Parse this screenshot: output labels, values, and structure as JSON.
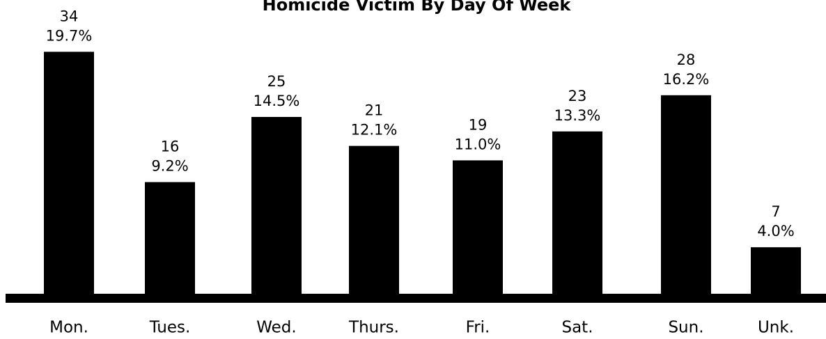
{
  "chart_data": {
    "type": "bar",
    "title": "Homicide Victim By Day Of Week",
    "categories": [
      "Mon.",
      "Tues.",
      "Wed.",
      "Thurs.",
      "Fri.",
      "Sat.",
      "Sun.",
      "Unk."
    ],
    "values": [
      34,
      16,
      25,
      21,
      19,
      23,
      28,
      7
    ],
    "percent_labels": [
      "19.7%",
      "9.2%",
      "14.5%",
      "12.1%",
      "11.0%",
      "13.3%",
      "16.2%",
      "4.0%"
    ],
    "color": "#000000"
  }
}
